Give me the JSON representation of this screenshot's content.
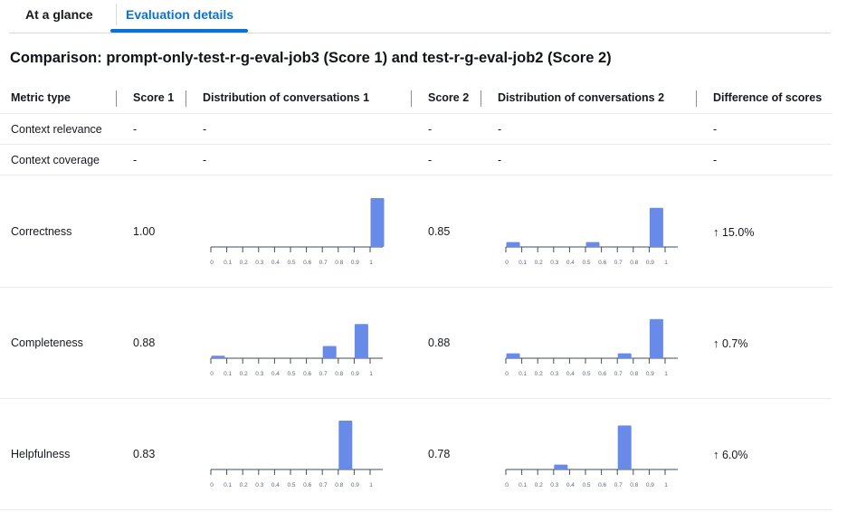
{
  "tabs": [
    {
      "label": "At a glance"
    },
    {
      "label": "Evaluation details"
    }
  ],
  "title": "Comparison: prompt-only-test-r-g-eval-job3 (Score 1) and test-r-g-eval-job2 (Score 2)",
  "columns": {
    "metric": "Metric type",
    "score1": "Score 1",
    "dist1": "Distribution of conversations 1",
    "score2": "Score 2",
    "dist2": "Distribution of conversations 2",
    "diff": "Difference of scores"
  },
  "empty_value": "-",
  "empty_rows": [
    {
      "metric": "Context relevance"
    },
    {
      "metric": "Context coverage"
    }
  ],
  "rows": [
    {
      "metric": "Correctness",
      "score1": "1.00",
      "score2": "0.85",
      "diff": "15.0%",
      "diff_arrow": "↑"
    },
    {
      "metric": "Completeness",
      "score1": "0.88",
      "score2": "0.88",
      "diff": "0.7%",
      "diff_arrow": "↑"
    },
    {
      "metric": "Helpfulness",
      "score1": "0.83",
      "score2": "0.78",
      "diff": "6.0%",
      "diff_arrow": "↑"
    }
  ],
  "chart_data": [
    {
      "type": "bar",
      "name": "Correctness - Distribution of conversations 1",
      "categories": [
        "0",
        "0.1",
        "0.2",
        "0.3",
        "0.4",
        "0.5",
        "0.6",
        "0.7",
        "0.8",
        "0.9",
        "1"
      ],
      "values": [
        0,
        0,
        0,
        0,
        0,
        0,
        0,
        0,
        0,
        0,
        1.0
      ],
      "ylim": [
        0,
        1
      ]
    },
    {
      "type": "bar",
      "name": "Correctness - Distribution of conversations 2",
      "categories": [
        "0",
        "0.1",
        "0.2",
        "0.3",
        "0.4",
        "0.5",
        "0.6",
        "0.7",
        "0.8",
        "0.9",
        "1"
      ],
      "values": [
        0.1,
        0,
        0,
        0,
        0,
        0.1,
        0,
        0,
        0,
        0.8,
        0
      ],
      "ylim": [
        0,
        1
      ]
    },
    {
      "type": "bar",
      "name": "Completeness - Distribution of conversations 1",
      "categories": [
        "0",
        "0.1",
        "0.2",
        "0.3",
        "0.4",
        "0.5",
        "0.6",
        "0.7",
        "0.8",
        "0.9",
        "1"
      ],
      "values": [
        0.05,
        0,
        0,
        0,
        0,
        0,
        0,
        0.25,
        0,
        0.7,
        0
      ],
      "ylim": [
        0,
        1
      ]
    },
    {
      "type": "bar",
      "name": "Completeness - Distribution of conversations 2",
      "categories": [
        "0",
        "0.1",
        "0.2",
        "0.3",
        "0.4",
        "0.5",
        "0.6",
        "0.7",
        "0.8",
        "0.9",
        "1"
      ],
      "values": [
        0.1,
        0,
        0,
        0,
        0,
        0,
        0,
        0.1,
        0,
        0.8,
        0
      ],
      "ylim": [
        0,
        1
      ]
    },
    {
      "type": "bar",
      "name": "Helpfulness - Distribution of conversations 1",
      "categories": [
        "0",
        "0.1",
        "0.2",
        "0.3",
        "0.4",
        "0.5",
        "0.6",
        "0.7",
        "0.8",
        "0.9",
        "1"
      ],
      "values": [
        0,
        0,
        0,
        0,
        0,
        0,
        0,
        0,
        1.0,
        0,
        0
      ],
      "ylim": [
        0,
        1
      ]
    },
    {
      "type": "bar",
      "name": "Helpfulness - Distribution of conversations 2",
      "categories": [
        "0",
        "0.1",
        "0.2",
        "0.3",
        "0.4",
        "0.5",
        "0.6",
        "0.7",
        "0.8",
        "0.9",
        "1"
      ],
      "values": [
        0,
        0,
        0,
        0.1,
        0,
        0,
        0,
        0.9,
        0,
        0,
        0
      ],
      "ylim": [
        0,
        1
      ]
    }
  ],
  "colors": {
    "bar": "#688ae8",
    "accent": "#0972d3"
  }
}
